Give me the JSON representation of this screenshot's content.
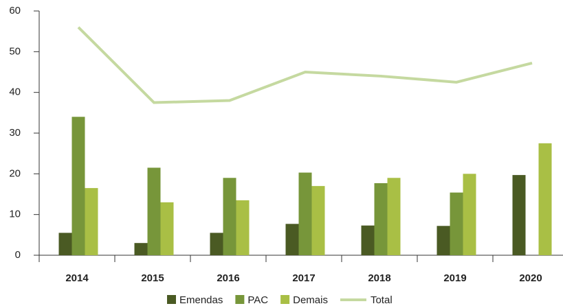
{
  "chart_data": {
    "type": "bar",
    "categories": [
      "2014",
      "2015",
      "2016",
      "2017",
      "2018",
      "2019",
      "2020"
    ],
    "series": [
      {
        "name": "Emendas",
        "color": "#4a5a23",
        "values": [
          5.5,
          3,
          5.5,
          7.7,
          7.3,
          7.2,
          19.7
        ]
      },
      {
        "name": "PAC",
        "color": "#77963a",
        "values": [
          34,
          21.5,
          19,
          20.3,
          17.7,
          15.4,
          null
        ]
      },
      {
        "name": "Demais",
        "color": "#a9bf45",
        "values": [
          16.5,
          13,
          13.5,
          17,
          19,
          20,
          27.5
        ]
      },
      {
        "name": "Total",
        "type": "line",
        "color": "#c5d9a0",
        "values": [
          56,
          37.5,
          38,
          45,
          44,
          42.5,
          47.2
        ]
      }
    ],
    "ylim": [
      0,
      60
    ],
    "yticks": [
      0,
      10,
      20,
      30,
      40,
      50,
      60
    ],
    "grid": false,
    "legend": "bottom"
  }
}
